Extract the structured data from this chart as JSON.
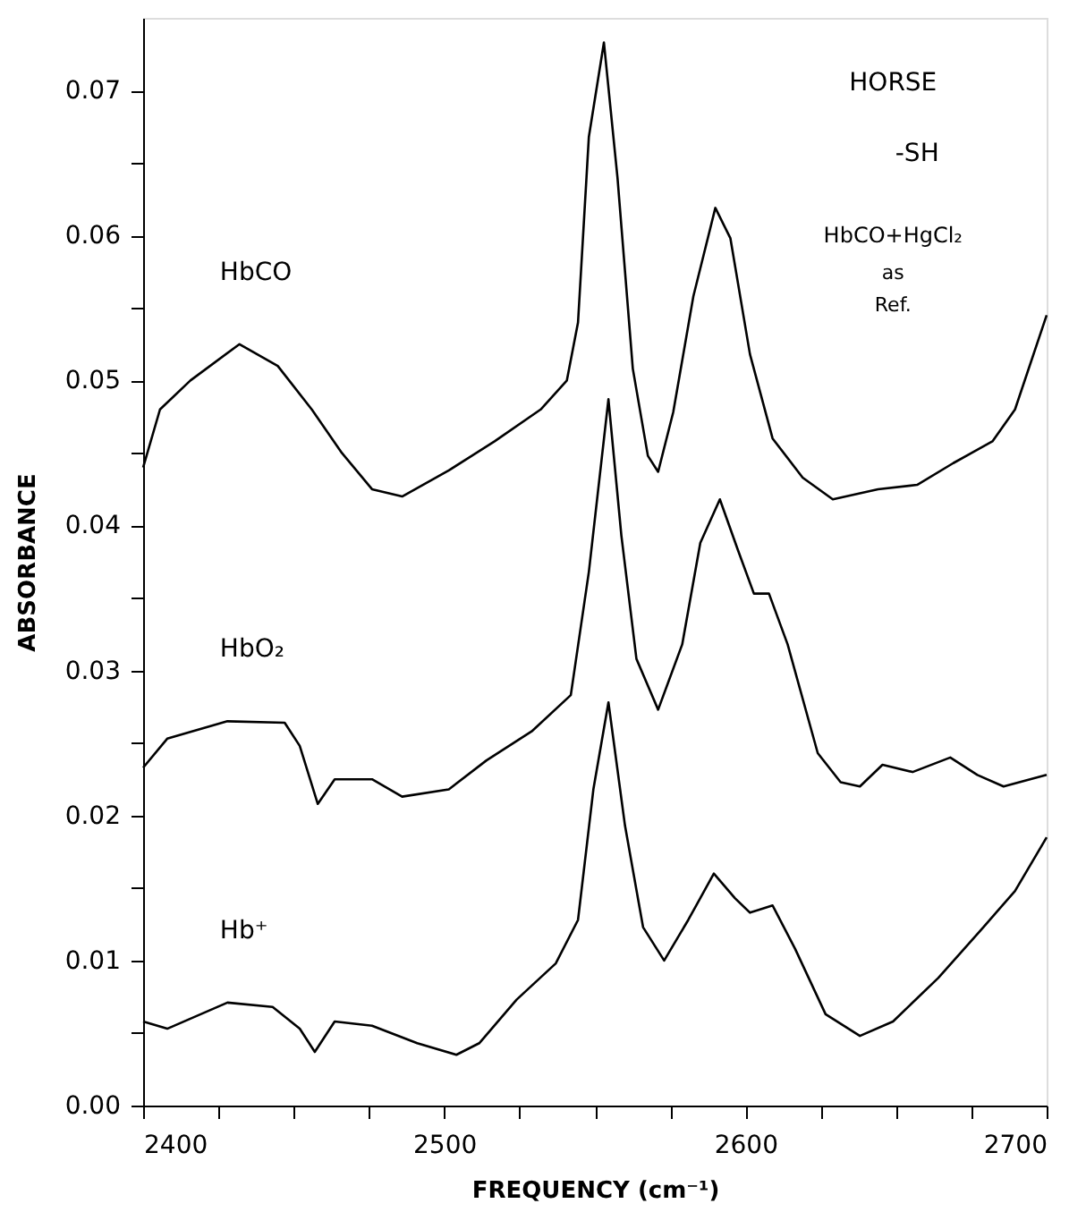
{
  "chart_data": {
    "type": "line",
    "xlabel": "FREQUENCY (cm⁻¹)",
    "ylabel": "ABSORBANCE",
    "xlim": [
      2400,
      2700
    ],
    "ylim": [
      0,
      0.075
    ],
    "xticks": [
      2400,
      {
        "value": 2425,
        "label": null
      },
      {
        "value": 2450,
        "label": null
      },
      {
        "value": 2475,
        "label": null
      },
      2500,
      {
        "value": 2525,
        "label": null
      },
      {
        "value": 2550,
        "label": null
      },
      {
        "value": 2575,
        "label": null
      },
      2600,
      {
        "value": 2625,
        "label": null
      },
      {
        "value": 2650,
        "label": null
      },
      {
        "value": 2675,
        "label": null
      },
      2700
    ],
    "yticks": [
      {
        "value": 0,
        "label": "0.00"
      },
      {
        "value": 0.005,
        "label": null
      },
      {
        "value": 0.01,
        "label": "0.01"
      },
      {
        "value": 0.015,
        "label": null
      },
      {
        "value": 0.02,
        "label": "0.02"
      },
      {
        "value": 0.025,
        "label": null
      },
      {
        "value": 0.03,
        "label": "0.03"
      },
      {
        "value": 0.035,
        "label": null
      },
      {
        "value": 0.04,
        "label": "0.04"
      },
      {
        "value": 0.045,
        "label": null
      },
      {
        "value": 0.05,
        "label": "0.05"
      },
      {
        "value": 0.055,
        "label": null
      },
      {
        "value": 0.06,
        "label": "0.06"
      },
      {
        "value": 0.065,
        "label": null
      },
      {
        "value": 0.07,
        "label": "0.07"
      }
    ],
    "grid": false,
    "marker": "none",
    "line_style": "solid",
    "annotations": [
      "HORSE",
      "-SH",
      "HbCO+HgCl₂",
      "as",
      "Ref."
    ],
    "series": [
      {
        "name": "HbCO",
        "color": "#000000",
        "x": [
          2400,
          2405.6,
          2415.7,
          2432,
          2444.7,
          2456,
          2466,
          2476,
          2486,
          2501.5,
          2516.7,
          2532,
          2540.7,
          2544.4,
          2548,
          2553,
          2557.5,
          2562.6,
          2567.6,
          2571,
          2576,
          2582.7,
          2590,
          2595,
          2601.5,
          2609,
          2619,
          2629,
          2644,
          2657,
          2669,
          2682,
          2689.5,
          2700
        ],
        "values": [
          0.044,
          0.048,
          0.05,
          0.0525,
          0.051,
          0.048,
          0.045,
          0.0425,
          0.042,
          0.0438,
          0.0458,
          0.048,
          0.05,
          0.054,
          0.0668,
          0.0733,
          0.064,
          0.0508,
          0.0448,
          0.0437,
          0.0478,
          0.0558,
          0.0619,
          0.0598,
          0.0518,
          0.046,
          0.0433,
          0.0418,
          0.0425,
          0.0428,
          0.0443,
          0.0458,
          0.048,
          0.0545
        ]
      },
      {
        "name": "HbO₂",
        "color": "#000000",
        "x": [
          2400,
          2408,
          2428,
          2447,
          2452,
          2458,
          2463.6,
          2476,
          2486,
          2501.5,
          2514,
          2529,
          2542,
          2548,
          2554.5,
          2558.8,
          2563.8,
          2571,
          2579,
          2585,
          2591.5,
          2597.5,
          2602.8,
          2607.8,
          2614,
          2624,
          2631.6,
          2638,
          2645.5,
          2655.5,
          2668,
          2677,
          2685.7,
          2700
        ],
        "values": [
          0.0233,
          0.0253,
          0.0265,
          0.0264,
          0.0248,
          0.0208,
          0.0225,
          0.0225,
          0.0213,
          0.0218,
          0.0238,
          0.0258,
          0.0283,
          0.0368,
          0.0487,
          0.0393,
          0.0308,
          0.0273,
          0.0318,
          0.0388,
          0.0418,
          0.0383,
          0.0353,
          0.0353,
          0.0318,
          0.0243,
          0.0223,
          0.022,
          0.0235,
          0.023,
          0.024,
          0.0228,
          0.022,
          0.0228
        ]
      },
      {
        "name": "Hb⁺",
        "color": "#000000",
        "x": [
          2400,
          2408,
          2428,
          2443,
          2452,
          2457,
          2463.6,
          2476,
          2491,
          2504,
          2511.6,
          2524,
          2537,
          2544.4,
          2549.5,
          2554.5,
          2560,
          2566,
          2573,
          2581,
          2589.5,
          2596.5,
          2601.5,
          2609,
          2616.5,
          2626.6,
          2638,
          2649,
          2664,
          2679,
          2689.5,
          2700
        ],
        "values": [
          0.0058,
          0.0053,
          0.0071,
          0.0068,
          0.0053,
          0.0037,
          0.0058,
          0.0055,
          0.0043,
          0.0035,
          0.0043,
          0.0073,
          0.0098,
          0.0128,
          0.0218,
          0.0278,
          0.0193,
          0.0123,
          0.01,
          0.0128,
          0.016,
          0.0143,
          0.0133,
          0.0138,
          0.0108,
          0.0063,
          0.0048,
          0.0058,
          0.0088,
          0.0123,
          0.0148,
          0.0185
        ]
      }
    ]
  }
}
